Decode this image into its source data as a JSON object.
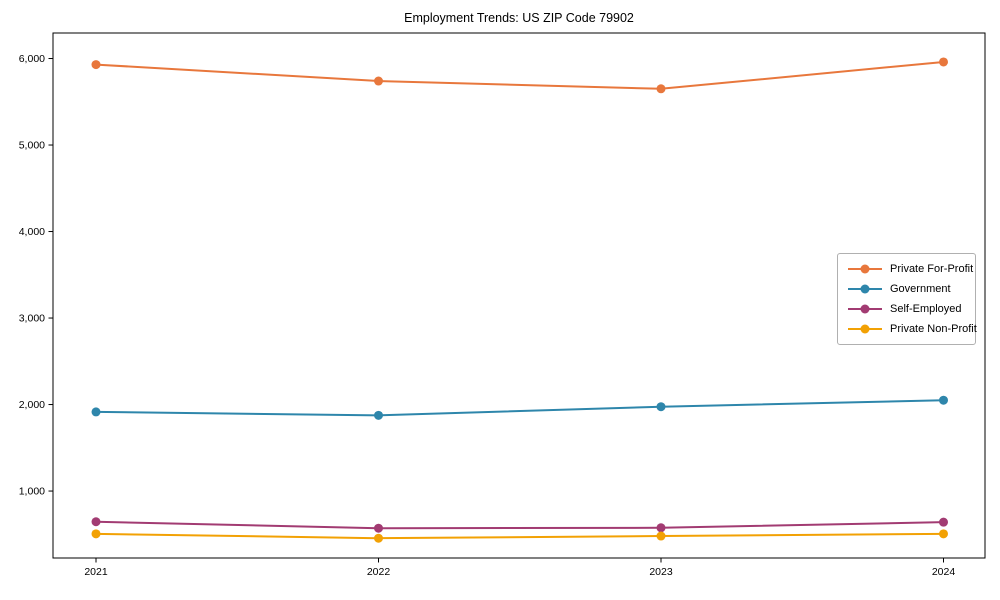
{
  "chart_data": {
    "type": "line",
    "title": "Employment Trends: US ZIP Code 79902",
    "x_labels": [
      "2021",
      "2022",
      "2023",
      "2024"
    ],
    "series": [
      {
        "name": "Private For-Profit",
        "color": "#E8773C",
        "values": [
          5930,
          5740,
          5650,
          5960
        ]
      },
      {
        "name": "Government",
        "color": "#2E86AB",
        "values": [
          1915,
          1875,
          1975,
          2050
        ]
      },
      {
        "name": "Self-Employed",
        "color": "#A23B72",
        "values": [
          645,
          570,
          575,
          640
        ]
      },
      {
        "name": "Private Non-Profit",
        "color": "#F2A104",
        "values": [
          505,
          455,
          480,
          505
        ]
      }
    ],
    "yticks": [
      1000,
      2000,
      3000,
      4000,
      5000,
      6000
    ],
    "ytick_labels": [
      "1,000",
      "2,000",
      "3,000",
      "4,000",
      "5,000",
      "6,000"
    ],
    "ylim": [
      226,
      6295
    ],
    "xlabel": "",
    "ylabel": "",
    "grid": false,
    "legend_position": "center right",
    "marker": "circle",
    "line_width": 2,
    "marker_radius": 4.5,
    "axis_color": "#000000",
    "background_color": "#ffffff"
  }
}
